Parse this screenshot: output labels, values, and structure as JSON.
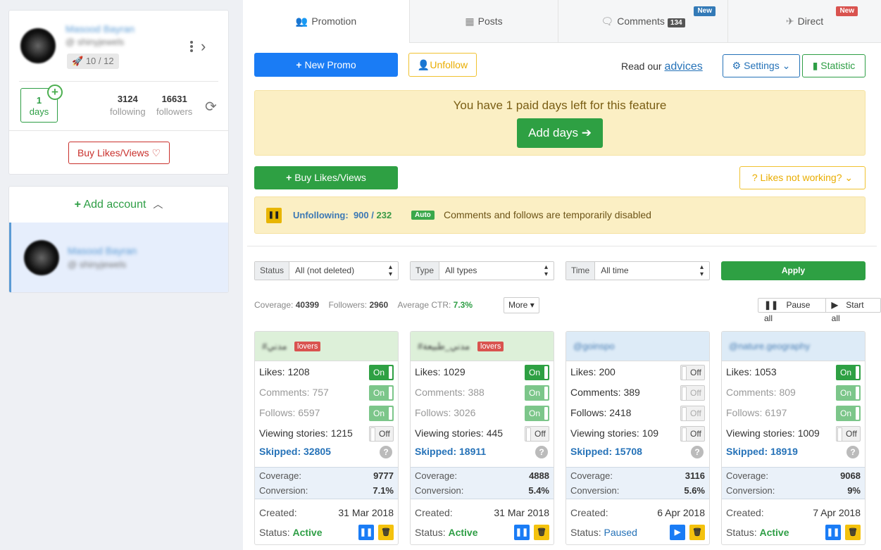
{
  "sidebar": {
    "account": {
      "name": "Masood Bayran",
      "handle": "@ shinyjewels",
      "rocket_badge": "10 / 12",
      "days_value": "1",
      "days_label": "days",
      "following_value": "3124",
      "following_label": "following",
      "followers_value": "16631",
      "followers_label": "followers",
      "buy_label": "Buy Likes/Views ♡"
    },
    "add_account_label": "Add account",
    "accounts": [
      {
        "name": "Masood Bayran",
        "handle": "@ shinyjewels"
      }
    ]
  },
  "tabs": [
    {
      "label": "Promotion",
      "icon": "users-icon",
      "active": true
    },
    {
      "label": "Posts",
      "icon": "grid-icon"
    },
    {
      "label": "Comments",
      "icon": "comments-icon",
      "count": "134",
      "badge": "New",
      "badge_color": "#337ab7"
    },
    {
      "label": "Direct",
      "icon": "paper-plane-icon",
      "badge": "New",
      "badge_color": "#d9534f"
    }
  ],
  "toolbar": {
    "new_promo": "New Promo",
    "unfollow": "Unfollow",
    "read_prefix": "Read our",
    "read_link": "advices",
    "settings": "Settings",
    "statistic": "Statistic"
  },
  "paid_notice": {
    "text": "You have 1 paid days left for this feature",
    "button": "Add days"
  },
  "buy_likes_label": "Buy Likes/Views",
  "likes_not_working_label": "Likes not working?",
  "unfollow_status": {
    "label": "Unfollowing:",
    "current": "900",
    "total": "232",
    "mode": "Auto",
    "message": "Comments and follows are temporarily disabled"
  },
  "filters": {
    "status": {
      "label": "Status",
      "value": "All (not deleted)"
    },
    "type": {
      "label": "Type",
      "value": "All types"
    },
    "time": {
      "label": "Time",
      "value": "All time"
    },
    "apply": "Apply"
  },
  "summary": {
    "coverage_label": "Coverage:",
    "coverage": "40399",
    "followers_label": "Followers:",
    "followers": "2960",
    "ctr_label": "Average CTR:",
    "ctr": "7.3%",
    "more": "More",
    "pause_all": "Pause all",
    "start_all": "Start all"
  },
  "labels": {
    "likes": "Likes:",
    "comments": "Comments:",
    "follows": "Follows:",
    "stories": "Viewing stories:",
    "skipped": "Skipped:",
    "coverage": "Coverage:",
    "conversion": "Conversion:",
    "created": "Created:",
    "status": "Status:",
    "on": "On",
    "off": "Off"
  },
  "promos": [
    {
      "tag": "#مدني",
      "tag_badge": "lovers",
      "likes": "1208",
      "comments": "757",
      "follows": "6597",
      "stories": "1215",
      "likes_on": true,
      "comments_on": true,
      "follows_on": true,
      "stories_on": false,
      "skipped": "32805",
      "coverage": "9777",
      "conversion": "7.1%",
      "created": "31 Mar 2018",
      "status": "Active"
    },
    {
      "tag": "#مدني_طبيعة",
      "tag_badge": "lovers",
      "likes": "1029",
      "comments": "388",
      "follows": "3026",
      "stories": "445",
      "likes_on": true,
      "comments_on": true,
      "follows_on": true,
      "stories_on": false,
      "skipped": "18911",
      "coverage": "4888",
      "conversion": "5.4%",
      "created": "31 Mar 2018",
      "status": "Active"
    },
    {
      "tag": "@goinspo",
      "tag_badge": "",
      "likes": "200",
      "comments": "389",
      "follows": "2418",
      "stories": "109",
      "likes_on": false,
      "comments_on": false,
      "follows_on": false,
      "stories_on": false,
      "skipped": "15708",
      "coverage": "3116",
      "conversion": "5.6%",
      "created": "6 Apr 2018",
      "status": "Paused"
    },
    {
      "tag": "@nature.geography",
      "tag_badge": "",
      "likes": "1053",
      "comments": "809",
      "follows": "6197",
      "stories": "1009",
      "likes_on": true,
      "comments_on": true,
      "follows_on": true,
      "stories_on": false,
      "skipped": "18919",
      "coverage": "9068",
      "conversion": "9%",
      "created": "7 Apr 2018",
      "status": "Active"
    }
  ]
}
